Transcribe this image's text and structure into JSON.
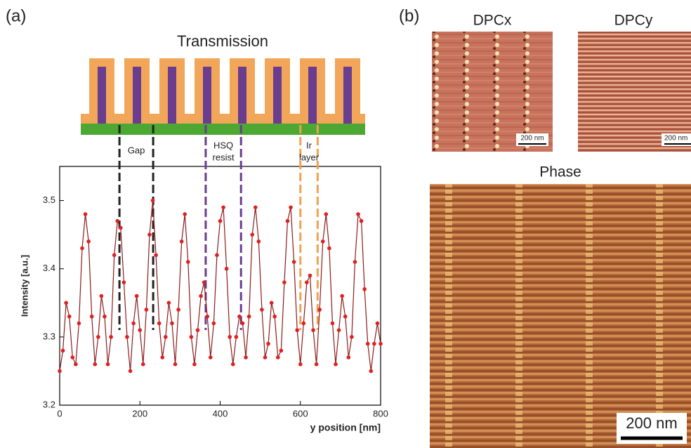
{
  "chart_data": {
    "type": "line",
    "panel_labels": [
      "(a)",
      "(b)"
    ],
    "title": "Transmission",
    "ylabel": "Intensity [a.u.]",
    "xlabel": "y position [nm]",
    "xlim": [
      0,
      800
    ],
    "xticks": [
      0,
      200,
      400,
      600,
      800
    ],
    "ylim": [
      3.2,
      3.55
    ],
    "yticks": [
      3.2,
      3.3,
      3.4,
      3.5
    ],
    "color": "#8b1a1a",
    "marker_color": "#e02020",
    "x": [
      0,
      8,
      16,
      24,
      32,
      40,
      48,
      56,
      64,
      72,
      80,
      88,
      96,
      104,
      112,
      120,
      128,
      136,
      144,
      152,
      160,
      168,
      176,
      184,
      192,
      200,
      208,
      216,
      224,
      232,
      240,
      248,
      256,
      264,
      272,
      280,
      288,
      296,
      304,
      312,
      320,
      328,
      336,
      344,
      352,
      360,
      368,
      376,
      384,
      392,
      400,
      408,
      416,
      424,
      432,
      440,
      448,
      456,
      464,
      472,
      480,
      488,
      496,
      504,
      512,
      520,
      528,
      536,
      544,
      552,
      560,
      568,
      576,
      584,
      592,
      600,
      608,
      616,
      624,
      632,
      640,
      648,
      656,
      664,
      672,
      680,
      688,
      696,
      704,
      712,
      720,
      728,
      736,
      744,
      752,
      760,
      768,
      776,
      784,
      792,
      800
    ],
    "values": [
      3.25,
      3.28,
      3.35,
      3.33,
      3.27,
      3.26,
      3.32,
      3.43,
      3.48,
      3.44,
      3.33,
      3.26,
      3.3,
      3.36,
      3.33,
      3.26,
      3.3,
      3.42,
      3.47,
      3.46,
      3.38,
      3.3,
      3.25,
      3.32,
      3.36,
      3.31,
      3.26,
      3.34,
      3.45,
      3.5,
      3.42,
      3.32,
      3.27,
      3.3,
      3.35,
      3.32,
      3.26,
      3.34,
      3.44,
      3.48,
      3.41,
      3.3,
      3.26,
      3.31,
      3.36,
      3.38,
      3.33,
      3.27,
      3.32,
      3.42,
      3.47,
      3.49,
      3.4,
      3.3,
      3.26,
      3.3,
      3.33,
      3.32,
      3.27,
      3.33,
      3.45,
      3.49,
      3.44,
      3.34,
      3.27,
      3.29,
      3.35,
      3.33,
      3.27,
      3.28,
      3.38,
      3.47,
      3.49,
      3.41,
      3.31,
      3.26,
      3.32,
      3.38,
      3.39,
      3.31,
      3.26,
      3.34,
      3.44,
      3.48,
      3.43,
      3.32,
      3.26,
      3.31,
      3.36,
      3.33,
      3.27,
      3.3,
      3.41,
      3.48,
      3.47,
      3.37,
      3.29,
      3.25,
      3.29,
      3.32,
      3.29
    ],
    "annotations": [
      {
        "label": [
          "Gap"
        ],
        "x": [
          149,
          233
        ],
        "color": "#222222"
      },
      {
        "label": [
          "HSQ",
          "resist"
        ],
        "x": [
          364,
          452
        ],
        "color": "#6a3d8f"
      },
      {
        "label": [
          "Ir",
          "layer"
        ],
        "x": [
          600,
          643
        ],
        "color": "#f0a050"
      }
    ],
    "images": [
      "DPCx",
      "DPCy",
      "Phase"
    ],
    "scale_bar": "200 nm"
  }
}
